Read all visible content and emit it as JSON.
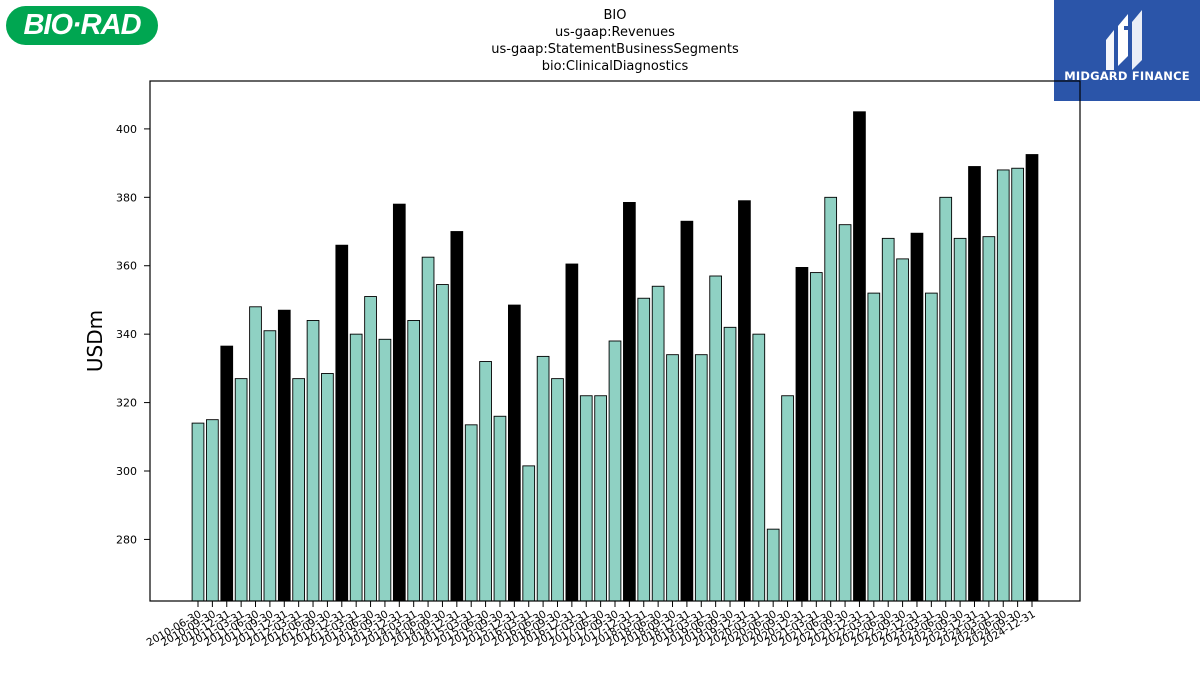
{
  "logos": {
    "left_text": "BIO·RAD",
    "right_text": "MIDGARD FINANCE",
    "right_icon": "midgard-finance-mark"
  },
  "title_lines": [
    "BIO",
    "us-gaap:Revenues",
    "us-gaap:StatementBusinessSegments",
    "bio:ClinicalDiagnostics"
  ],
  "colors": {
    "regular_bar": "#8fd1c3",
    "year_end_bar": "#000000",
    "logo_green": "#00a651",
    "logo_blue": "#2b55a9"
  },
  "chart_data": {
    "type": "bar",
    "ylabel": "USDm",
    "xlabel": "",
    "ylim": [
      262,
      414
    ],
    "yticks": [
      280,
      300,
      320,
      340,
      360,
      380,
      400
    ],
    "grid": false,
    "categories": [
      "2010-06-30",
      "2010-09-30",
      "2010-12-31",
      "2011-03-31",
      "2011-06-30",
      "2011-09-30",
      "2011-12-31",
      "2012-03-31",
      "2012-06-30",
      "2012-09-30",
      "2012-12-31",
      "2013-03-31",
      "2013-06-30",
      "2013-09-30",
      "2013-12-31",
      "2014-03-31",
      "2014-06-30",
      "2014-09-30",
      "2014-12-31",
      "2015-03-31",
      "2015-06-30",
      "2015-09-30",
      "2015-12-31",
      "2016-03-31",
      "2016-06-30",
      "2016-09-30",
      "2016-12-31",
      "2017-03-31",
      "2017-06-30",
      "2017-09-30",
      "2017-12-31",
      "2018-03-31",
      "2018-06-30",
      "2018-09-30",
      "2018-12-31",
      "2019-03-31",
      "2019-06-30",
      "2019-09-30",
      "2019-12-31",
      "2020-03-31",
      "2020-06-30",
      "2020-09-30",
      "2020-12-31",
      "2021-03-31",
      "2021-06-30",
      "2021-09-30",
      "2021-12-31",
      "2022-03-31",
      "2022-06-30",
      "2022-09-30",
      "2022-12-31",
      "2023-03-31",
      "2023-06-30",
      "2023-09-30",
      "2023-12-31",
      "2024-03-31",
      "2024-06-30",
      "2024-09-30",
      "2024-12-31"
    ],
    "values": [
      314,
      315,
      336.5,
      327,
      348,
      341,
      347,
      327,
      344,
      328.5,
      366,
      340,
      351,
      338.5,
      378,
      344,
      362.5,
      354.5,
      370,
      313.5,
      332,
      316,
      348.5,
      301.5,
      333.5,
      327,
      360.5,
      322,
      322,
      338,
      378.5,
      350.5,
      354,
      334,
      373,
      334,
      357,
      342,
      379,
      340,
      283,
      322,
      359.5,
      358,
      380,
      372,
      405,
      352,
      368,
      362,
      369.5,
      352,
      380,
      368,
      389,
      368.5,
      388,
      388.5,
      392.5
    ],
    "highlight": [
      false,
      false,
      true,
      false,
      false,
      false,
      true,
      false,
      false,
      false,
      true,
      false,
      false,
      false,
      true,
      false,
      false,
      false,
      true,
      false,
      false,
      false,
      true,
      false,
      false,
      false,
      true,
      false,
      false,
      false,
      true,
      false,
      false,
      false,
      true,
      false,
      false,
      false,
      true,
      false,
      false,
      false,
      true,
      false,
      false,
      false,
      true,
      false,
      false,
      false,
      true,
      false,
      false,
      false,
      true,
      false,
      false,
      false,
      true
    ]
  }
}
